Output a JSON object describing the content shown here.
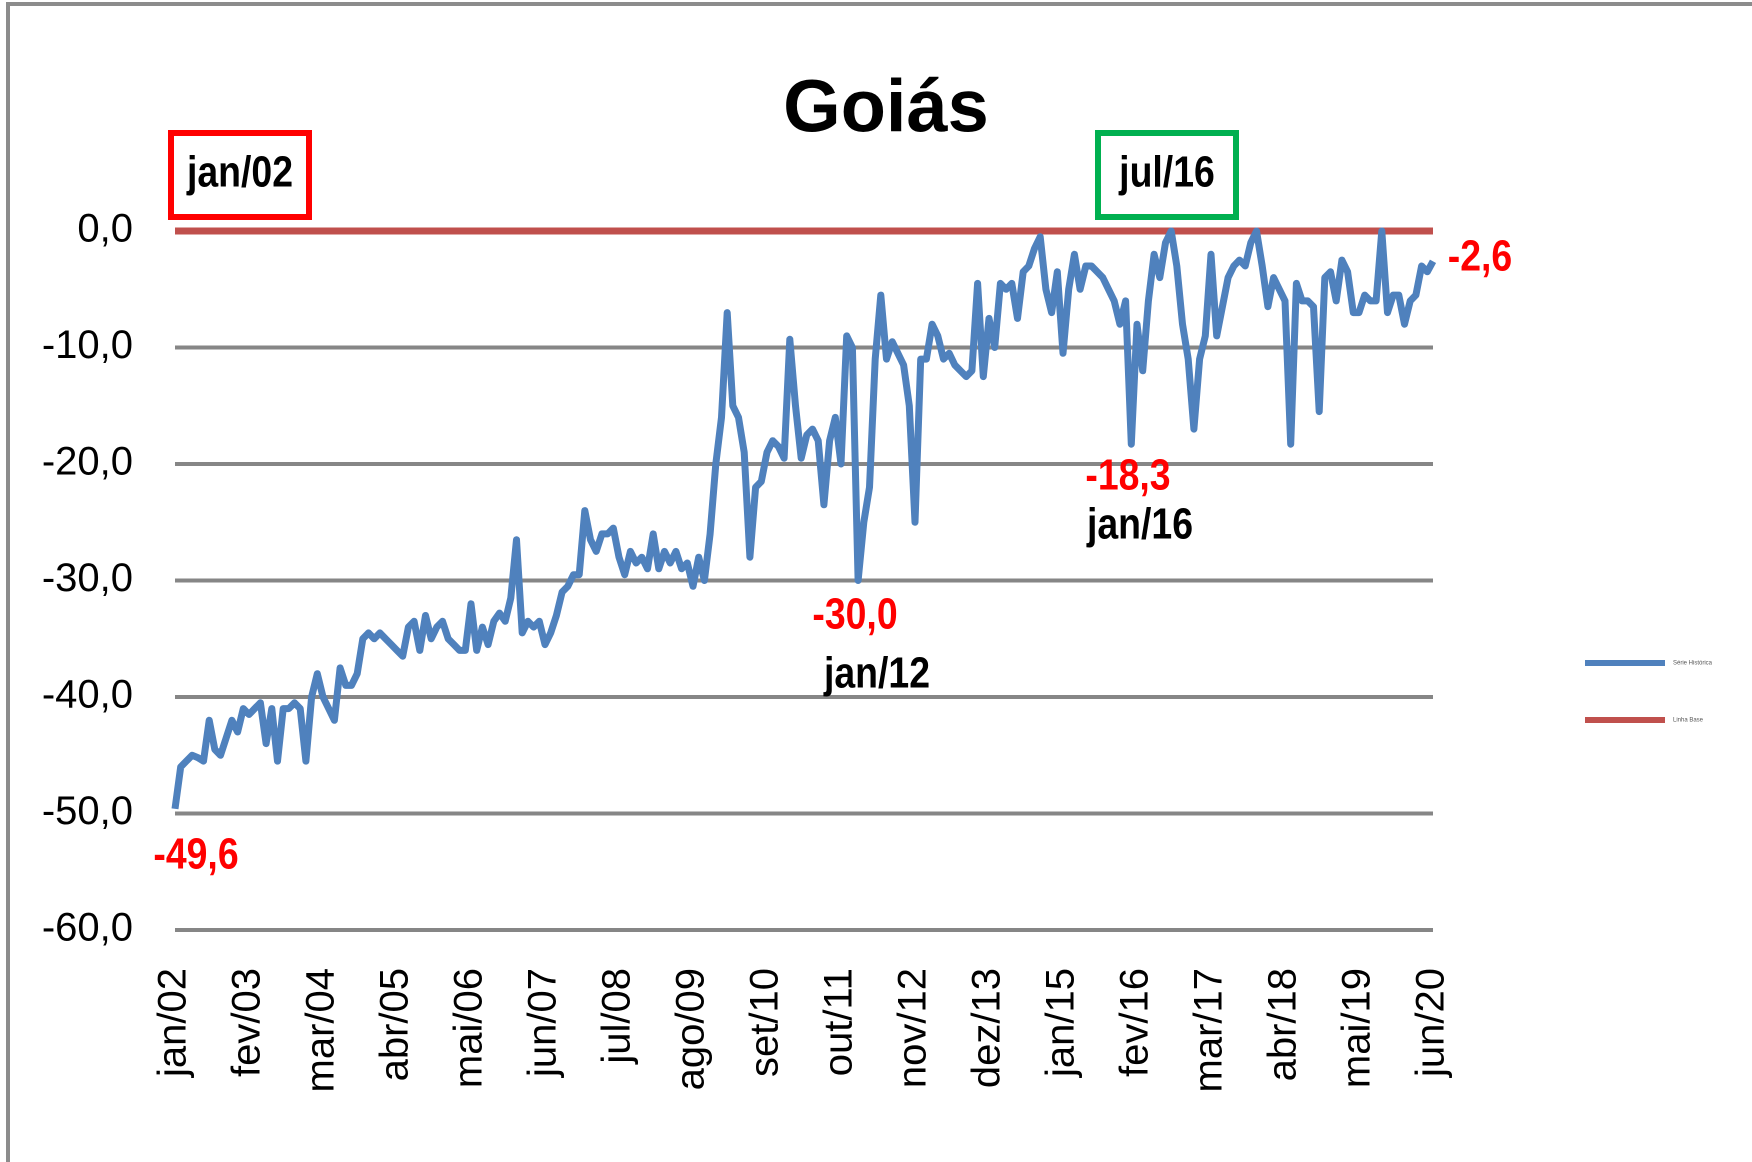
{
  "chart_data": {
    "type": "line",
    "title": "Goiás",
    "categories": [
      "jan/02",
      null,
      null,
      null,
      null,
      null,
      null,
      null,
      null,
      null,
      null,
      null,
      null,
      "fev/03",
      null,
      null,
      null,
      null,
      null,
      null,
      null,
      null,
      null,
      null,
      null,
      null,
      "mar/04",
      null,
      null,
      null,
      null,
      null,
      null,
      null,
      null,
      null,
      null,
      null,
      null,
      "abr/05",
      null,
      null,
      null,
      null,
      null,
      null,
      null,
      null,
      null,
      null,
      null,
      null,
      "mai/06",
      null,
      null,
      null,
      null,
      null,
      null,
      null,
      null,
      null,
      null,
      null,
      null,
      "jun/07",
      null,
      null,
      null,
      null,
      null,
      null,
      null,
      null,
      null,
      null,
      null,
      null,
      "jul/08",
      null,
      null,
      null,
      null,
      null,
      null,
      null,
      null,
      null,
      null,
      null,
      null,
      "ago/09",
      null,
      null,
      null,
      null,
      null,
      null,
      null,
      null,
      null,
      null,
      null,
      null,
      "set/10",
      null,
      null,
      null,
      null,
      null,
      null,
      null,
      null,
      null,
      null,
      null,
      null,
      "out/11",
      null,
      null,
      null,
      null,
      null,
      null,
      null,
      null,
      null,
      null,
      null,
      null,
      "nov/12",
      null,
      null,
      null,
      null,
      null,
      null,
      null,
      null,
      null,
      null,
      null,
      null,
      "dez/13",
      null,
      null,
      null,
      null,
      null,
      null,
      null,
      null,
      null,
      null,
      null,
      null,
      "jan/15",
      null,
      null,
      null,
      null,
      null,
      null,
      null,
      null,
      null,
      null,
      null,
      null,
      "fev/16",
      null,
      null,
      null,
      null,
      null,
      null,
      null,
      null,
      null,
      null,
      null,
      null,
      "mar/17",
      null,
      null,
      null,
      null,
      null,
      null,
      null,
      null,
      null,
      null,
      null,
      null,
      "abr/18",
      null,
      null,
      null,
      null,
      null,
      null,
      null,
      null,
      null,
      null,
      null,
      null,
      "mai/19",
      null,
      null,
      null,
      null,
      null,
      null,
      null,
      null,
      null,
      null,
      null,
      null,
      "jun/20"
    ],
    "series": [
      {
        "name": "Série Histórica",
        "color": "#4f81bd",
        "values": [
          -49.6,
          -46,
          -45.5,
          -45,
          -45.2,
          -45.5,
          -42,
          -44.5,
          -45,
          -43.5,
          -42,
          -43,
          -41,
          -41.5,
          -41,
          -40.5,
          -44,
          -41,
          -45.5,
          -41,
          -41,
          -40.5,
          -41,
          -45.5,
          -40,
          -38,
          -40,
          -41,
          -42,
          -37.5,
          -39,
          -39,
          -38,
          -35,
          -34.5,
          -35,
          -34.5,
          -35,
          -35.5,
          -36,
          -36.5,
          -34,
          -33.5,
          -36,
          -33,
          -35,
          -34,
          -33.5,
          -35,
          -35.5,
          -36,
          -36,
          -32,
          -36,
          -34,
          -35.5,
          -33.5,
          -32.8,
          -33.5,
          -31.5,
          -26.5,
          -34.5,
          -33.5,
          -34,
          -33.5,
          -35.5,
          -34.5,
          -33,
          -31,
          -30.5,
          -29.5,
          -29.5,
          -24,
          -26.5,
          -27.5,
          -26,
          -26,
          -25.5,
          -28,
          -29.5,
          -27.5,
          -28.5,
          -28,
          -29,
          -26,
          -29,
          -27.5,
          -28.5,
          -27.5,
          -29,
          -28.5,
          -30.5,
          -28,
          -30,
          -26,
          -20,
          -16,
          -7,
          -15,
          -16,
          -19,
          -28,
          -22,
          -21.5,
          -19,
          -18,
          -18.5,
          -19.5,
          -9.3,
          -15,
          -19.5,
          -17.5,
          -17,
          -18,
          -23.5,
          -18,
          -16,
          -20,
          -9,
          -10,
          -30,
          -25,
          -22,
          -11,
          -5.5,
          -11,
          -9.5,
          -10.5,
          -11.5,
          -15,
          -25,
          -11,
          -11,
          -8,
          -9,
          -11,
          -10.5,
          -11.5,
          -12,
          -12.5,
          -12,
          -4.5,
          -12.5,
          -7.5,
          -10,
          -4.5,
          -5,
          -4.5,
          -7.5,
          -3.5,
          -3,
          -1.5,
          -0.5,
          -5,
          -7,
          -3.5,
          -10.5,
          -5,
          -2,
          -5,
          -3,
          -3,
          -3.5,
          -4,
          -5,
          -6,
          -8,
          -6,
          -18.3,
          -8,
          -12,
          -6,
          -2,
          -4,
          -1,
          0,
          -3,
          -8,
          -11,
          -17,
          -11,
          -9,
          -2,
          -9,
          -6.5,
          -4,
          -3,
          -2.5,
          -3,
          -1,
          0,
          -3,
          -6.5,
          -4,
          -5,
          -6,
          -18.3,
          -4.5,
          -6,
          -6,
          -6.5,
          -15.5,
          -4,
          -3.5,
          -6,
          -2.5,
          -3.5,
          -7,
          -7,
          -5.5,
          -6,
          -6,
          0,
          -7,
          -5.5,
          -5.5,
          -8,
          -6,
          -5.5,
          -3,
          -3.5,
          -2.6
        ]
      }
    ],
    "reference_line": {
      "name": "Linha Base",
      "value": 0,
      "color": "#c0504d"
    },
    "ylim": [
      -60,
      0
    ],
    "yticks": [
      {
        "value": 0,
        "label": "0,0"
      },
      {
        "value": -10,
        "label": "-10,0"
      },
      {
        "value": -20,
        "label": "-20,0"
      },
      {
        "value": -30,
        "label": "-30,0"
      },
      {
        "value": -40,
        "label": "-40,0"
      },
      {
        "value": -50,
        "label": "-50,0"
      },
      {
        "value": -60,
        "label": "-60,0"
      }
    ],
    "grid": true,
    "legend": "right",
    "annotations": [
      {
        "text": "-49,6",
        "index": 0,
        "color": "#ff0000"
      },
      {
        "text": "-30,0",
        "index": 120,
        "color": "#ff0000"
      },
      {
        "text": "jan/12",
        "index": 120,
        "color": "#000000"
      },
      {
        "text": "-18,3",
        "index": 168,
        "color": "#ff0000"
      },
      {
        "text": "jan/16",
        "index": 168,
        "color": "#000000"
      },
      {
        "text": "-2,6",
        "index": 221,
        "color": "#ff0000"
      },
      {
        "text": "jan/02",
        "index": 0,
        "color": "#000000",
        "box_color": "#ff0000"
      },
      {
        "text": "jul/16",
        "index": 174,
        "color": "#000000",
        "box_color": "#00b050"
      }
    ]
  }
}
